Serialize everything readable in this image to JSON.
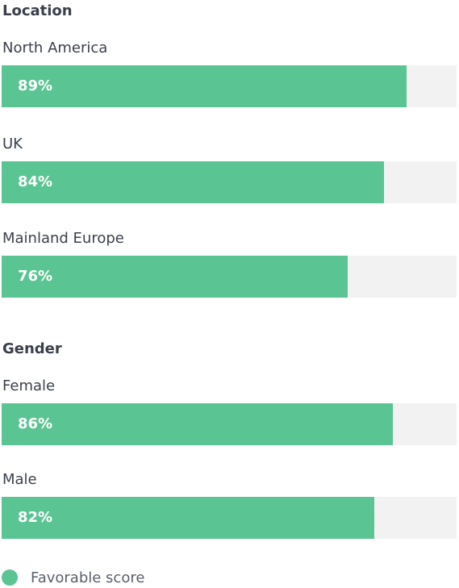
{
  "colors": {
    "favorable": "#5ac493",
    "track": "#f2f2f2"
  },
  "legend": {
    "label": "Favorable score"
  },
  "chart_data": {
    "type": "bar",
    "orientation": "horizontal",
    "xlim": [
      0,
      100
    ],
    "groups": [
      {
        "title": "Location",
        "categories": [
          "North America",
          "UK",
          "Mainland Europe"
        ],
        "values": [
          89,
          84,
          76
        ],
        "value_labels": [
          "89%",
          "84%",
          "76%"
        ]
      },
      {
        "title": "Gender",
        "categories": [
          "Female",
          "Male"
        ],
        "values": [
          86,
          82
        ],
        "value_labels": [
          "86%",
          "82%"
        ]
      }
    ],
    "series": [
      {
        "name": "Favorable score"
      }
    ],
    "legend_position": "bottom-left"
  }
}
